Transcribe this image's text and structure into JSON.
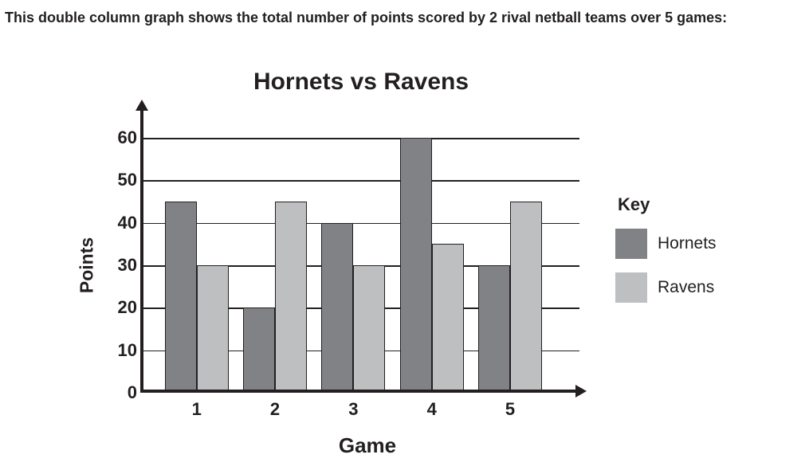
{
  "intro": "This double column graph shows the total number of points scored by 2 rival netball teams over 5 games:",
  "legend": {
    "title": "Key"
  },
  "colors": {
    "axis": "#231f20",
    "hornets": "#808285",
    "ravens": "#bdbfc1"
  },
  "chart_data": {
    "type": "bar",
    "title": "Hornets vs Ravens",
    "xlabel": "Game",
    "ylabel": "Points",
    "categories": [
      "1",
      "2",
      "3",
      "4",
      "5"
    ],
    "series": [
      {
        "name": "Hornets",
        "color": "#808285",
        "values": [
          45,
          20,
          40,
          60,
          30
        ]
      },
      {
        "name": "Ravens",
        "color": "#bdbfc1",
        "values": [
          30,
          45,
          30,
          35,
          45
        ]
      }
    ],
    "ylim": [
      0,
      60
    ],
    "ytick_interval": 10,
    "grid": true,
    "legend_position": "right"
  }
}
